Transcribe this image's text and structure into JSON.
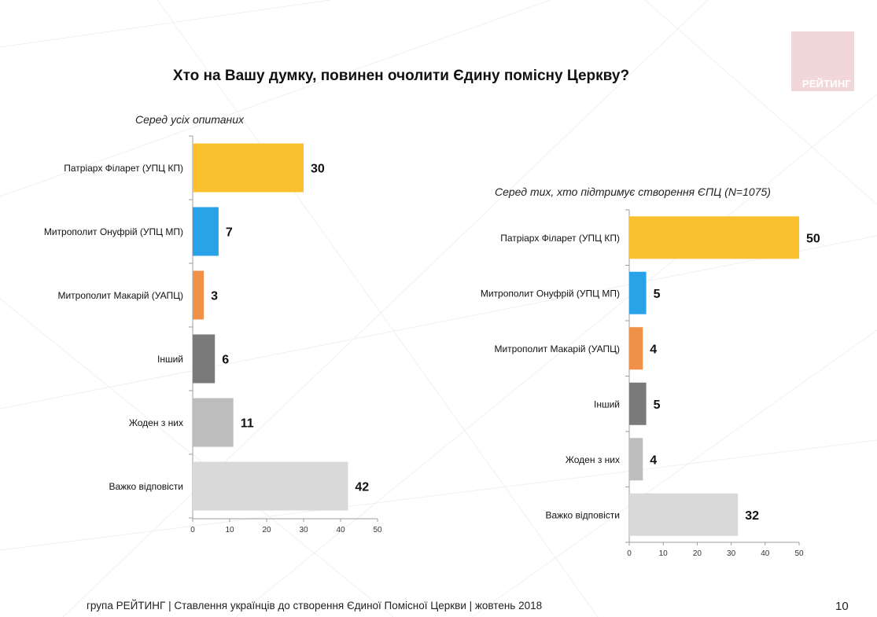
{
  "title": "Хто на Вашу думку, повинен очолити Єдину помісну Церкву?",
  "logo": {
    "text": "РЕЙТИНГ",
    "color": "#f2d7da"
  },
  "footer": "група РЕЙТИНГ | Ставлення українців до створення Єдиної Помісної Церкви | жовтень 2018",
  "page_number": "10",
  "chart_data": [
    {
      "type": "bar",
      "orientation": "horizontal",
      "subtitle": "Серед усіх опитаних",
      "categories": [
        "Патріарх Філарет (УПЦ КП)",
        "Митрополит Онуфрій (УПЦ МП)",
        "Митрополит Макарій (УАПЦ)",
        "Інший",
        "Жоден з них",
        "Важко відповісти"
      ],
      "values": [
        30,
        7,
        3,
        6,
        11,
        42
      ],
      "colors": [
        "#fbc02d",
        "#29a3e8",
        "#f0914a",
        "#7a7a7a",
        "#bdbdbd",
        "#d9d9d9"
      ],
      "xlim": [
        0,
        50
      ],
      "xticks": [
        "0",
        "10",
        "20",
        "30",
        "40",
        "50"
      ],
      "data_labels": [
        "30",
        "7",
        "3",
        "6",
        "11",
        "42"
      ],
      "grid": false
    },
    {
      "type": "bar",
      "orientation": "horizontal",
      "subtitle": "Серед тих, хто підтримує створення ЄПЦ (N=1075)",
      "categories": [
        "Патріарх Філарет (УПЦ КП)",
        "Митрополит Онуфрій (УПЦ МП)",
        "Митрополит Макарій (УАПЦ)",
        "Інший",
        "Жоден з них",
        "Важко відповісти"
      ],
      "values": [
        50,
        5,
        4,
        5,
        4,
        32
      ],
      "colors": [
        "#fbc02d",
        "#29a3e8",
        "#f0914a",
        "#7a7a7a",
        "#bdbdbd",
        "#d9d9d9"
      ],
      "xlim": [
        0,
        50
      ],
      "xticks": [
        "0",
        "10",
        "20",
        "30",
        "40",
        "50"
      ],
      "data_labels": [
        "50",
        "5",
        "4",
        "5",
        "4",
        "32"
      ],
      "grid": false
    }
  ]
}
